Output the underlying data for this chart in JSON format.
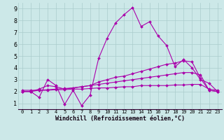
{
  "background_color": "#cce8e8",
  "grid_color": "#aacccc",
  "line_color": "#aa00aa",
  "marker": "D",
  "marker_size": 2.0,
  "linewidth": 0.8,
  "xlim": [
    -0.5,
    23.5
  ],
  "ylim": [
    0.5,
    9.5
  ],
  "xticks": [
    0,
    1,
    2,
    3,
    4,
    5,
    6,
    7,
    8,
    9,
    10,
    11,
    12,
    13,
    14,
    15,
    16,
    17,
    18,
    19,
    20,
    21,
    22,
    23
  ],
  "yticks": [
    1,
    2,
    3,
    4,
    5,
    6,
    7,
    8,
    9
  ],
  "xlabel": "Windchill (Refroidissement éolien,°C)",
  "series": [
    [
      2.0,
      2.0,
      1.5,
      3.0,
      2.5,
      0.9,
      2.1,
      0.8,
      1.7,
      4.8,
      6.5,
      7.8,
      8.5,
      9.1,
      7.5,
      7.9,
      6.7,
      5.9,
      4.1,
      4.7,
      4.0,
      3.0,
      2.7,
      2.0
    ],
    [
      2.0,
      2.0,
      2.2,
      2.5,
      2.4,
      2.2,
      2.3,
      2.4,
      2.5,
      2.8,
      3.0,
      3.2,
      3.3,
      3.5,
      3.7,
      3.9,
      4.1,
      4.3,
      4.4,
      4.6,
      4.5,
      3.1,
      2.1,
      2.0
    ],
    [
      2.0,
      2.0,
      2.1,
      2.15,
      2.2,
      2.25,
      2.3,
      2.4,
      2.5,
      2.6,
      2.7,
      2.8,
      2.9,
      3.0,
      3.1,
      3.2,
      3.3,
      3.4,
      3.5,
      3.6,
      3.6,
      3.4,
      2.1,
      2.0
    ],
    [
      2.1,
      2.1,
      2.1,
      2.1,
      2.15,
      2.15,
      2.2,
      2.2,
      2.25,
      2.3,
      2.3,
      2.35,
      2.4,
      2.4,
      2.5,
      2.5,
      2.5,
      2.5,
      2.55,
      2.55,
      2.6,
      2.6,
      2.2,
      2.1
    ]
  ]
}
